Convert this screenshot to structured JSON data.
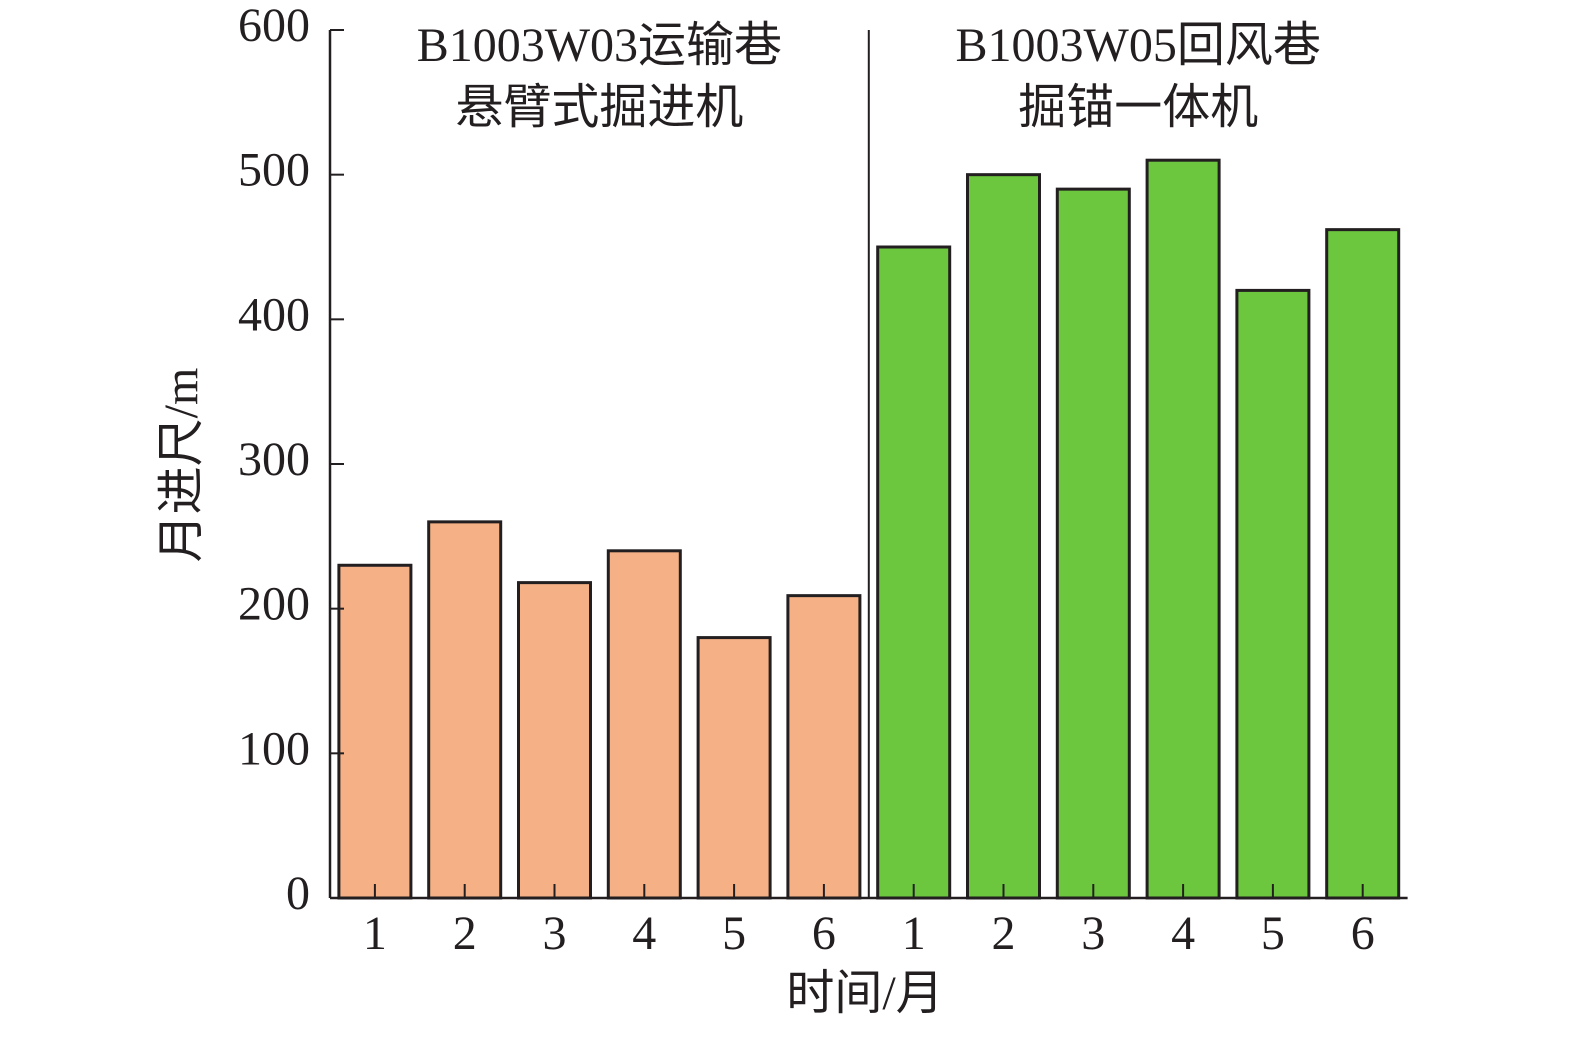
{
  "chart_data": {
    "type": "bar",
    "y_label": "月进尺/m",
    "x_label": "时间/月",
    "ylim": [
      0,
      600
    ],
    "yticks": [
      0,
      100,
      200,
      300,
      400,
      500,
      600
    ],
    "series": [
      {
        "name": [
          "B1003W03运输巷",
          "悬臂式掘进机"
        ],
        "color": "#f5b185",
        "categories": [
          "1",
          "2",
          "3",
          "4",
          "5",
          "6"
        ],
        "values": [
          230,
          260,
          218,
          240,
          180,
          209
        ]
      },
      {
        "name": [
          "B1003W05回风巷",
          "掘锚一体机"
        ],
        "color": "#6cc63e",
        "categories": [
          "1",
          "2",
          "3",
          "4",
          "5",
          "6"
        ],
        "values": [
          450,
          500,
          490,
          510,
          420,
          462
        ]
      }
    ]
  }
}
